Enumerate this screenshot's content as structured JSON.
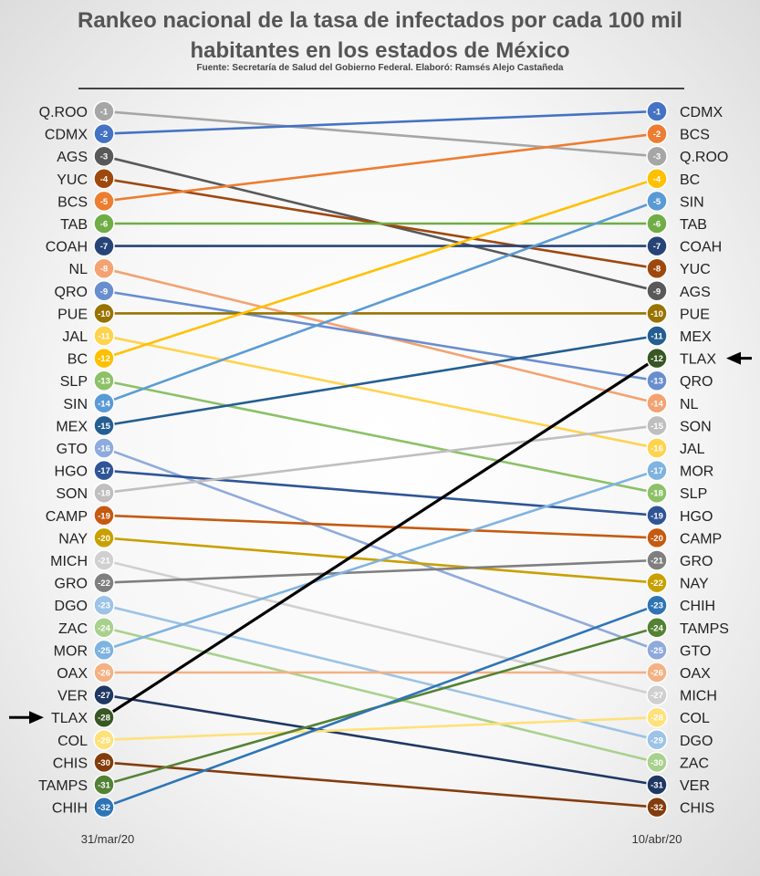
{
  "header": {
    "title_line1": "Rankeo nacional de la tasa de infectados por cada 100 mil",
    "title_line2": "habitantes en los estados de México",
    "source": "Fuente: Secretaría de Salud del Gobierno Federal. Elaboró: Ramsés Alejo Castañeda"
  },
  "chart_data": {
    "type": "slope",
    "title": "Rankeo nacional de la tasa de infectados por cada 100 mil habitantes en los estados de México",
    "left_date": "31/mar/20",
    "right_date": "10/abr/20",
    "highlight": "TLAX",
    "ranks_count": 32,
    "states": [
      {
        "name": "Q.ROO",
        "left": 1,
        "right": 3,
        "color": "#a6a6a6"
      },
      {
        "name": "CDMX",
        "left": 2,
        "right": 1,
        "color": "#4472c4"
      },
      {
        "name": "AGS",
        "left": 3,
        "right": 9,
        "color": "#595959"
      },
      {
        "name": "YUC",
        "left": 4,
        "right": 8,
        "color": "#9e480e"
      },
      {
        "name": "BCS",
        "left": 5,
        "right": 2,
        "color": "#ed7d31"
      },
      {
        "name": "TAB",
        "left": 6,
        "right": 6,
        "color": "#70ad47"
      },
      {
        "name": "COAH",
        "left": 7,
        "right": 7,
        "color": "#264478"
      },
      {
        "name": "NL",
        "left": 8,
        "right": 14,
        "color": "#f4a271"
      },
      {
        "name": "QRO",
        "left": 9,
        "right": 13,
        "color": "#698ed0"
      },
      {
        "name": "PUE",
        "left": 10,
        "right": 10,
        "color": "#997300"
      },
      {
        "name": "JAL",
        "left": 11,
        "right": 16,
        "color": "#ffd34d"
      },
      {
        "name": "BC",
        "left": 12,
        "right": 4,
        "color": "#ffc000"
      },
      {
        "name": "SLP",
        "left": 13,
        "right": 18,
        "color": "#8cc168"
      },
      {
        "name": "SIN",
        "left": 14,
        "right": 5,
        "color": "#5b9bd5"
      },
      {
        "name": "MEX",
        "left": 15,
        "right": 11,
        "color": "#255e91"
      },
      {
        "name": "GTO",
        "left": 16,
        "right": 25,
        "color": "#8faadc"
      },
      {
        "name": "HGO",
        "left": 17,
        "right": 19,
        "color": "#2f5597"
      },
      {
        "name": "SON",
        "left": 18,
        "right": 15,
        "color": "#bfbfbf"
      },
      {
        "name": "CAMP",
        "left": 19,
        "right": 20,
        "color": "#c55a11"
      },
      {
        "name": "NAY",
        "left": 20,
        "right": 22,
        "color": "#c9a000"
      },
      {
        "name": "MICH",
        "left": 21,
        "right": 27,
        "color": "#d0d0d0"
      },
      {
        "name": "GRO",
        "left": 22,
        "right": 21,
        "color": "#7f7f7f"
      },
      {
        "name": "DGO",
        "left": 23,
        "right": 29,
        "color": "#9dc3e6"
      },
      {
        "name": "ZAC",
        "left": 24,
        "right": 30,
        "color": "#a9d18e"
      },
      {
        "name": "MOR",
        "left": 25,
        "right": 17,
        "color": "#7fb3e0"
      },
      {
        "name": "OAX",
        "left": 26,
        "right": 26,
        "color": "#f4b183"
      },
      {
        "name": "VER",
        "left": 27,
        "right": 31,
        "color": "#203864"
      },
      {
        "name": "TLAX",
        "left": 28,
        "right": 12,
        "color": "#000000",
        "dot_color": "#385723"
      },
      {
        "name": "COL",
        "left": 29,
        "right": 28,
        "color": "#ffe17a"
      },
      {
        "name": "CHIS",
        "left": 30,
        "right": 32,
        "color": "#843c0c"
      },
      {
        "name": "TAMPS",
        "left": 31,
        "right": 24,
        "color": "#548235"
      },
      {
        "name": "CHIH",
        "left": 32,
        "right": 23,
        "color": "#2e75b6"
      }
    ]
  }
}
